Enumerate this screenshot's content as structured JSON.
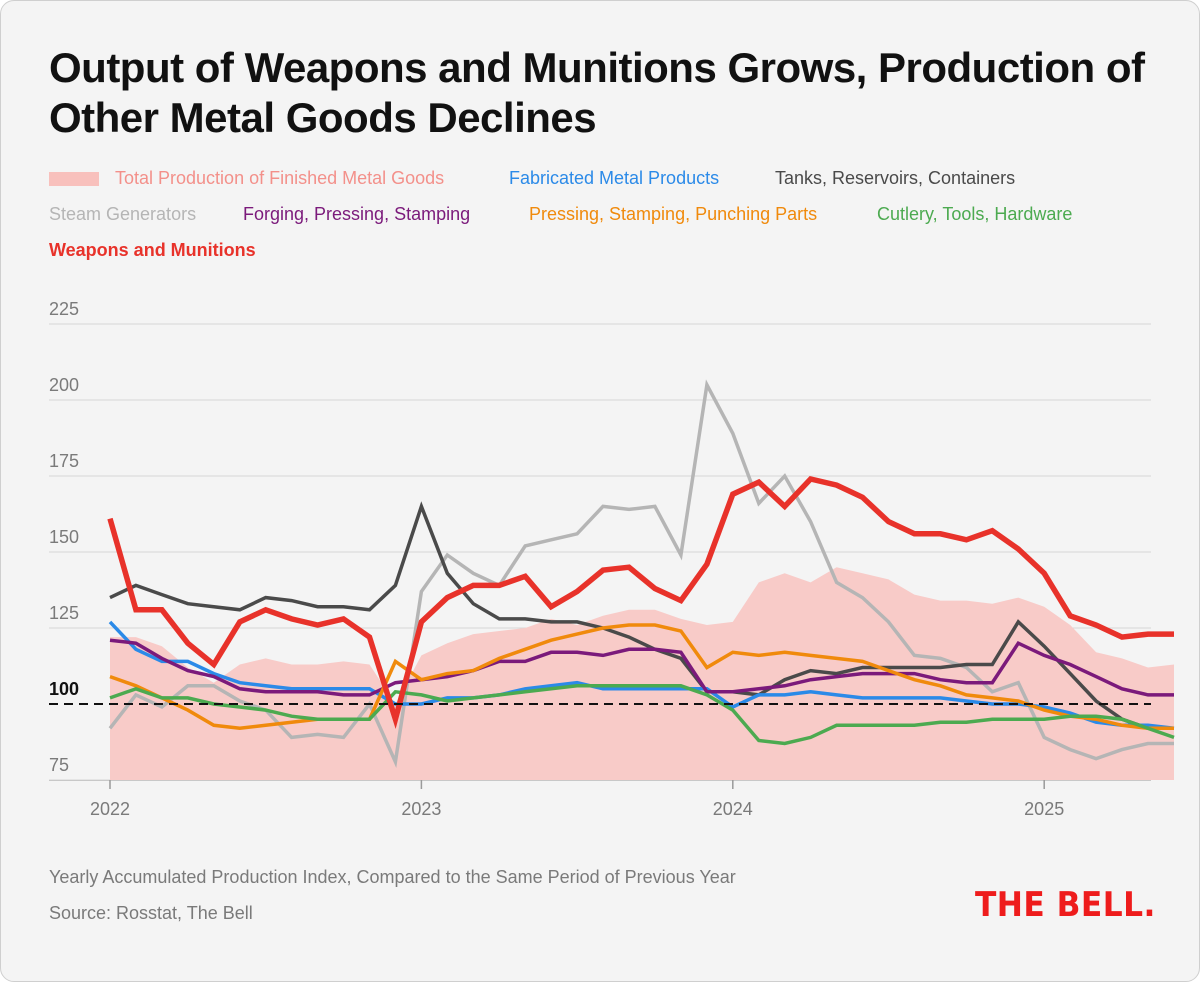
{
  "title": "Output of Weapons and Munitions Grows, Production of Other Metal Goods Declines",
  "footnote": "Yearly Accumulated Production Index, Compared to the Same Period of Previous Year",
  "source": "Source: Rosstat, The Bell",
  "logo": "THE BELL.",
  "chart_data": {
    "type": "line",
    "x_start": "2022-01",
    "x_end": "2025-05",
    "x_ticks": [
      "2022",
      "2023",
      "2024",
      "2025"
    ],
    "y_ticks": [
      75,
      100,
      125,
      150,
      175,
      200,
      225
    ],
    "ylim": [
      75,
      225
    ],
    "reference_line": 100,
    "grid": "horizontal",
    "legend_position": "top",
    "series": [
      {
        "name": "Total Production of Finished Metal Goods",
        "kind": "area",
        "color": "#f8cbc8",
        "legend_color": "#f3908a",
        "values": [
          122,
          122,
          119,
          112,
          107,
          113,
          115,
          113,
          113,
          114,
          113,
          100,
          116,
          120,
          123,
          124,
          125,
          128,
          126,
          129,
          131,
          131,
          128,
          126,
          127,
          140,
          143,
          140,
          145,
          143,
          141,
          136,
          134,
          134,
          133,
          135,
          132,
          126,
          117,
          115,
          112,
          113
        ]
      },
      {
        "name": "Fabricated Metal Products",
        "color": "#2b8ae8",
        "values": [
          127,
          118,
          114,
          114,
          110,
          107,
          106,
          105,
          105,
          105,
          105,
          100,
          100,
          102,
          102,
          103,
          105,
          106,
          107,
          105,
          105,
          105,
          105,
          105,
          99,
          103,
          103,
          104,
          103,
          102,
          102,
          102,
          102,
          101,
          100,
          100,
          99,
          97,
          94,
          93,
          93,
          92
        ]
      },
      {
        "name": "Tanks, Reservoirs, Containers",
        "color": "#4a4a4a",
        "values": [
          135,
          139,
          136,
          133,
          132,
          131,
          135,
          134,
          132,
          132,
          131,
          139,
          165,
          143,
          133,
          128,
          128,
          127,
          127,
          125,
          122,
          118,
          115,
          104,
          104,
          103,
          108,
          111,
          110,
          112,
          112,
          112,
          112,
          113,
          113,
          127,
          119,
          110,
          101,
          95,
          92,
          92
        ]
      },
      {
        "name": "Steam Generators",
        "color": "#b5b5b5",
        "values": [
          92,
          103,
          99,
          106,
          106,
          101,
          98,
          89,
          90,
          89,
          100,
          81,
          137,
          149,
          143,
          139,
          152,
          154,
          156,
          165,
          164,
          165,
          149,
          205,
          189,
          166,
          175,
          160,
          140,
          135,
          127,
          116,
          115,
          112,
          104,
          107,
          89,
          85,
          82,
          85,
          87,
          87
        ]
      },
      {
        "name": "Forging, Pressing, Stamping",
        "color": "#7b1a7b",
        "values": [
          121,
          120,
          115,
          111,
          109,
          105,
          104,
          104,
          104,
          103,
          103,
          107,
          108,
          109,
          111,
          114,
          114,
          117,
          117,
          116,
          118,
          118,
          117,
          104,
          104,
          105,
          106,
          108,
          109,
          110,
          110,
          110,
          108,
          107,
          107,
          120,
          116,
          113,
          109,
          105,
          103,
          103
        ]
      },
      {
        "name": "Pressing, Stamping, Punching Parts",
        "color": "#f08a0c",
        "values": [
          109,
          106,
          102,
          98,
          93,
          92,
          93,
          94,
          95,
          95,
          95,
          114,
          108,
          110,
          111,
          115,
          118,
          121,
          123,
          125,
          126,
          126,
          124,
          112,
          117,
          116,
          117,
          116,
          115,
          114,
          111,
          108,
          106,
          103,
          102,
          101,
          98,
          96,
          95,
          93,
          92,
          92
        ]
      },
      {
        "name": "Cutlery, Tools, Hardware",
        "color": "#4caa50",
        "values": [
          102,
          105,
          102,
          102,
          100,
          99,
          98,
          96,
          95,
          95,
          95,
          104,
          103,
          101,
          102,
          103,
          104,
          105,
          106,
          106,
          106,
          106,
          106,
          103,
          98,
          88,
          87,
          89,
          93,
          93,
          93,
          93,
          94,
          94,
          95,
          95,
          95,
          96,
          96,
          95,
          92,
          89
        ]
      },
      {
        "name": "Weapons and Munitions",
        "color": "#e8322a",
        "bold": true,
        "values": [
          161,
          131,
          131,
          120,
          113,
          127,
          131,
          128,
          126,
          128,
          122,
          95,
          127,
          135,
          139,
          139,
          142,
          132,
          137,
          144,
          145,
          138,
          134,
          146,
          169,
          173,
          165,
          174,
          172,
          168,
          160,
          156,
          156,
          154,
          157,
          151,
          143,
          129,
          126,
          122,
          123,
          123
        ]
      }
    ]
  }
}
